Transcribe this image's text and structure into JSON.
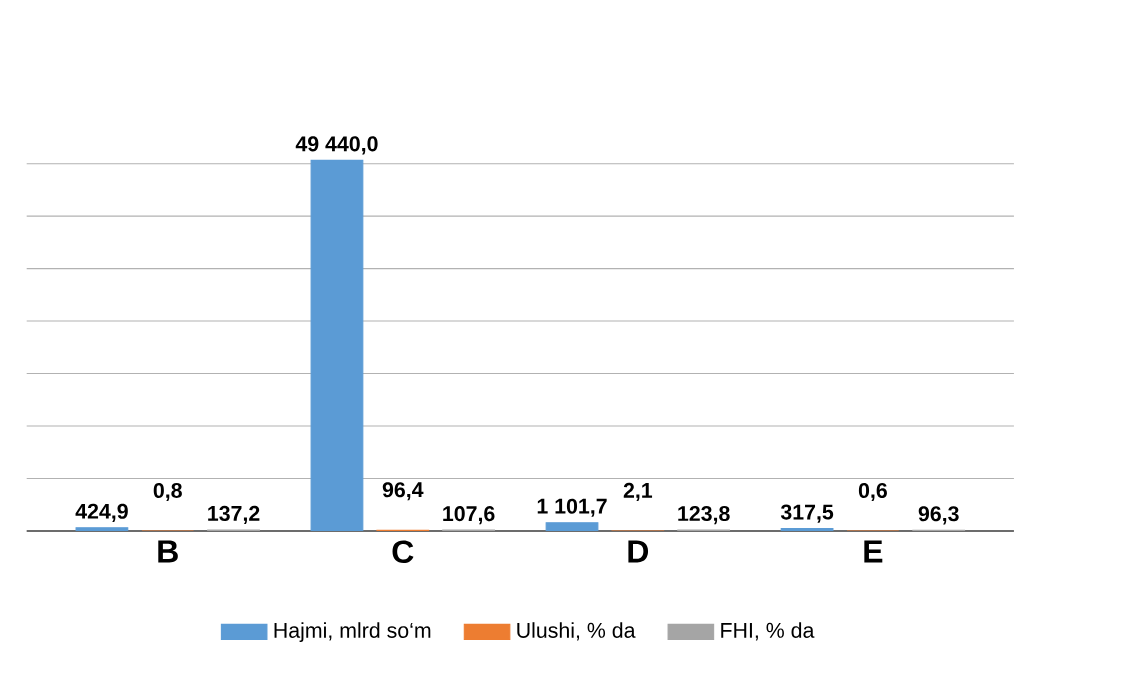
{
  "chart_data": {
    "type": "bar",
    "categories": [
      "B",
      "C",
      "D",
      "E"
    ],
    "series": [
      {
        "name": "Hajmi, mlrd so‘m",
        "color": "#5b9bd5",
        "values": [
          424.9,
          49440.0,
          1101.7,
          317.5
        ],
        "value_labels": [
          "424,9",
          "49 440,0",
          "1 101,7",
          "317,5"
        ]
      },
      {
        "name": "Ulushi, % da",
        "color": "#ed7d31",
        "values": [
          0.8,
          96.4,
          2.1,
          0.6
        ],
        "value_labels": [
          "0,8",
          "96,4",
          "2,1",
          "0,6"
        ]
      },
      {
        "name": "FHI, % da",
        "color": "#a5a5a5",
        "values": [
          137.2,
          107.6,
          123.8,
          96.3
        ],
        "value_labels": [
          "137,2",
          "107,6",
          "123,8",
          "96,3"
        ]
      }
    ],
    "grid": "y",
    "legend": "bottom",
    "tick_labels": "x"
  }
}
